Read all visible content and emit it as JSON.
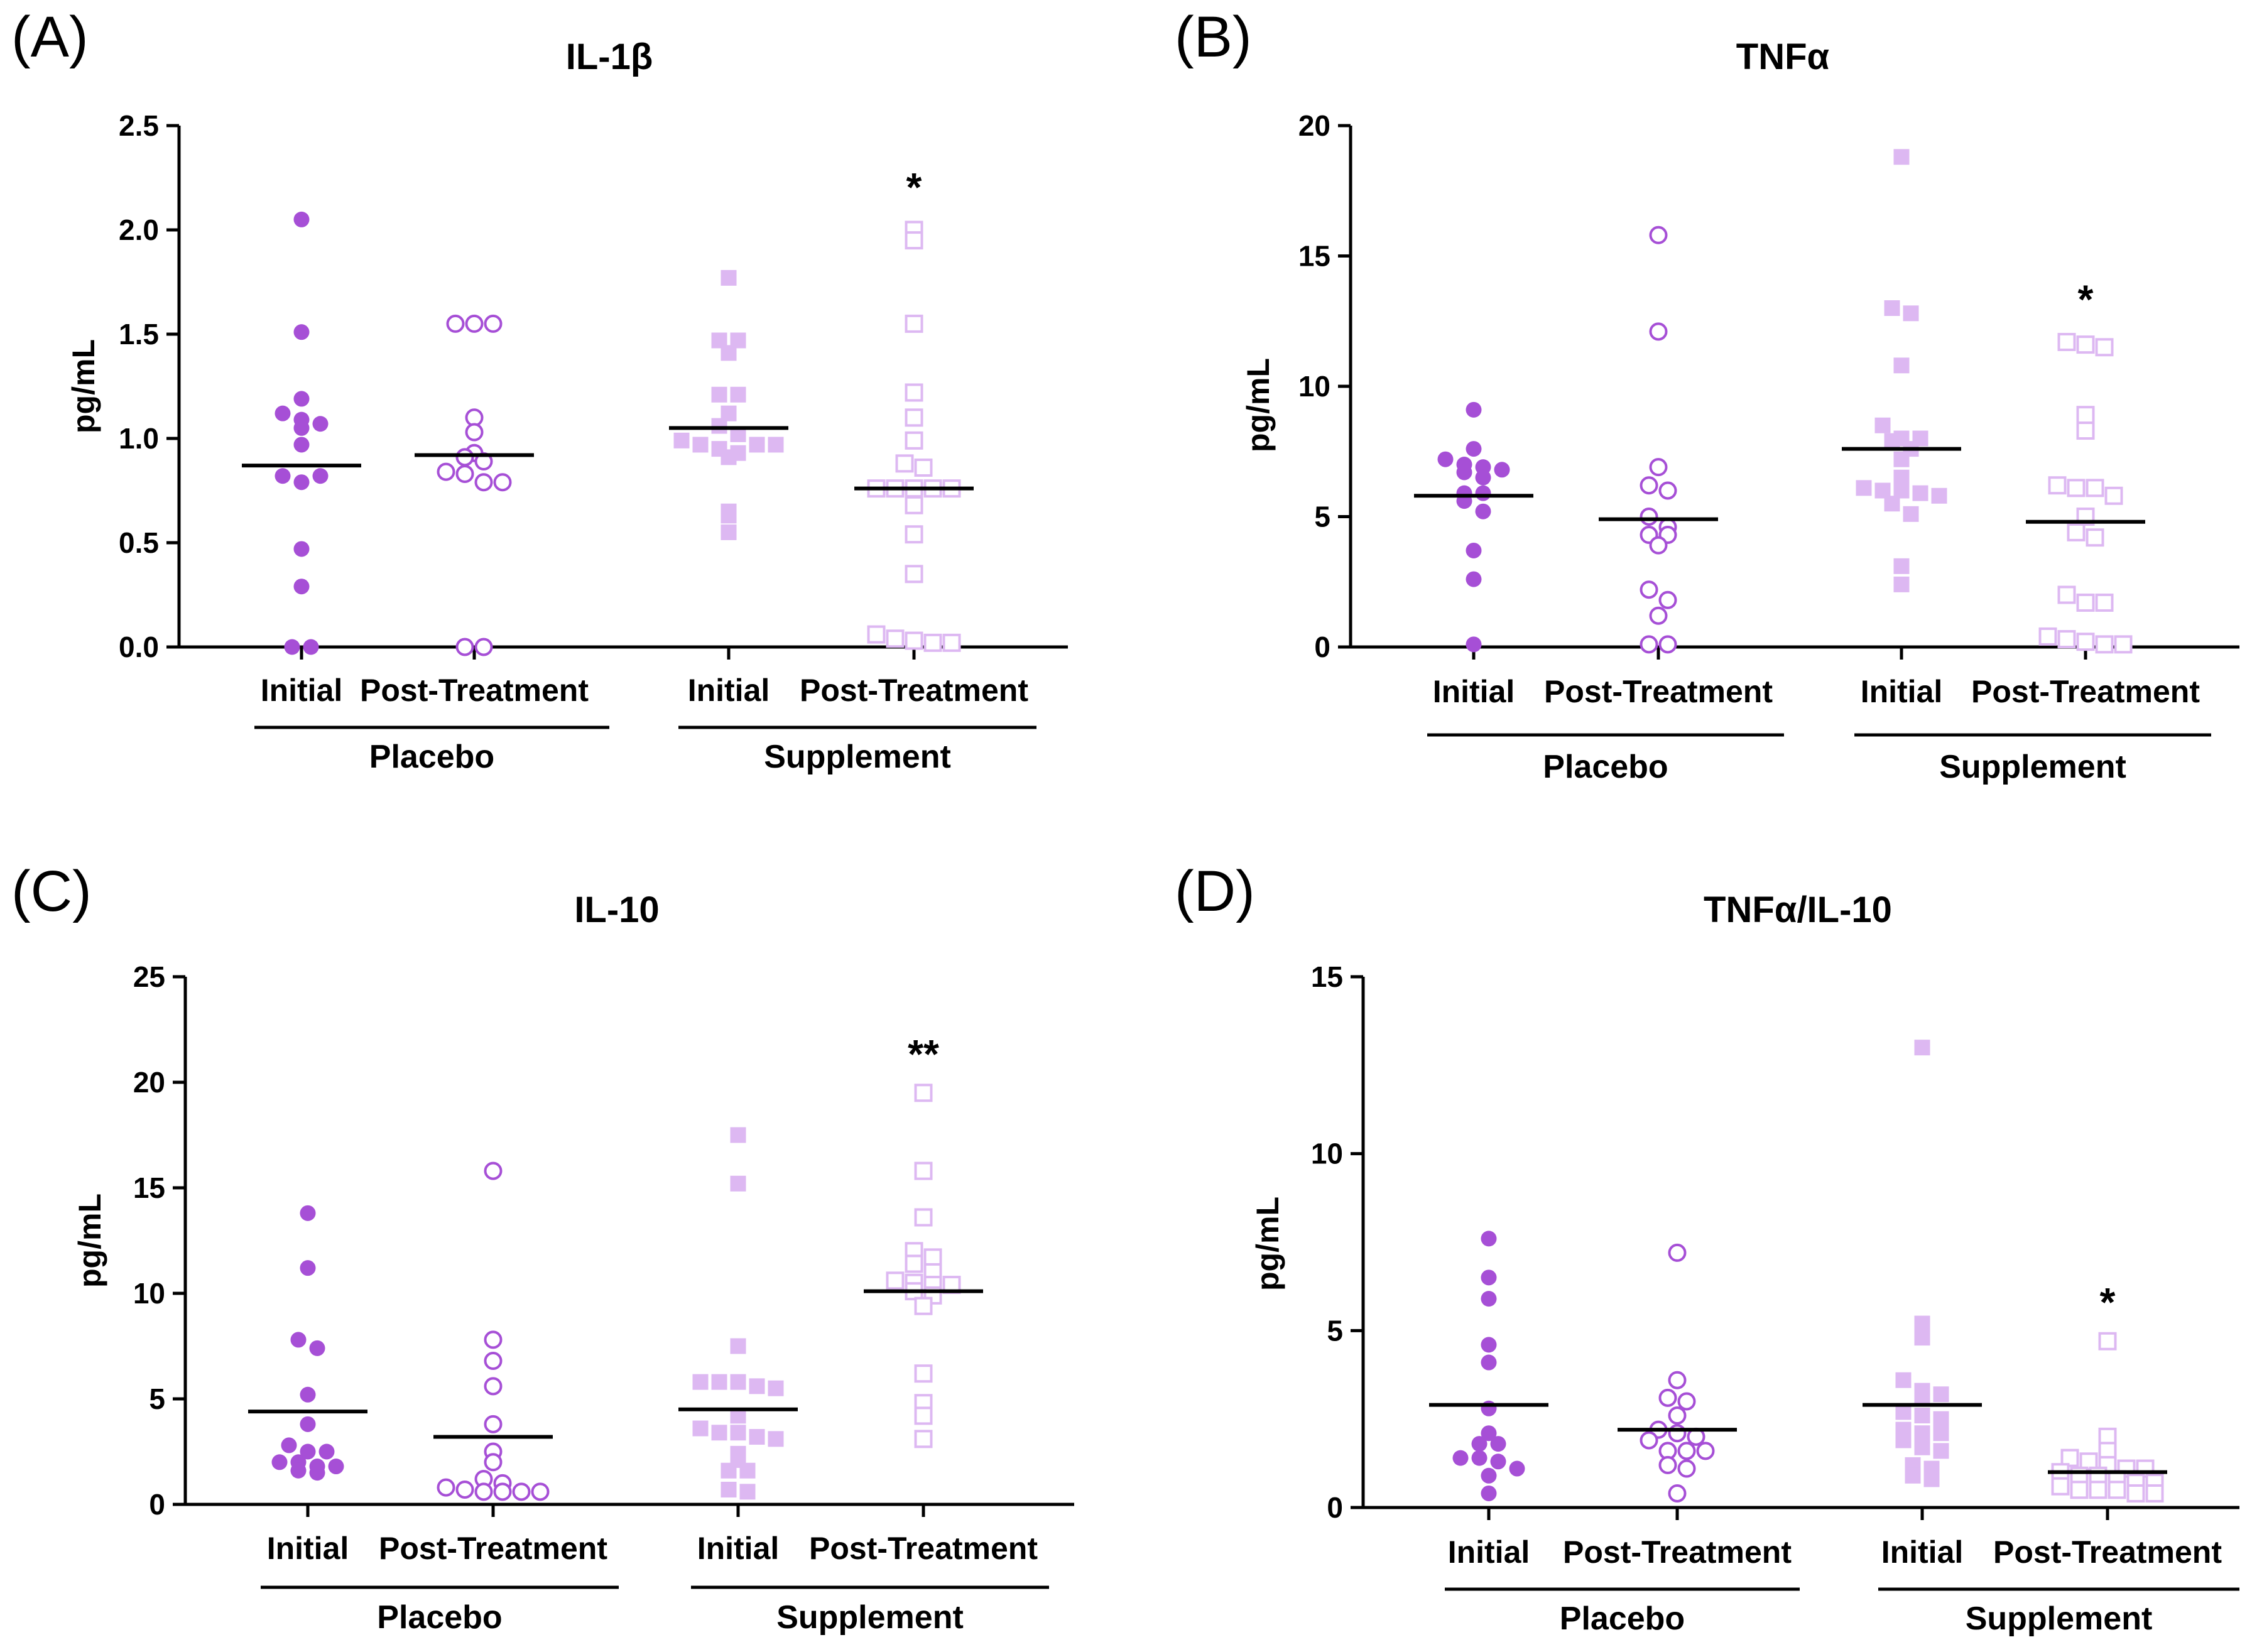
{
  "colors": {
    "placebo": "#a64fd6",
    "supplement": "#ddb8f2",
    "axis": "#000000"
  },
  "chart_data": [
    {
      "type": "scatter",
      "panel": "(A)",
      "title": "IL-1β",
      "ylabel": "pg/mL",
      "ylim": [
        0,
        2.5
      ],
      "yticks": [
        "0.0",
        "0.5",
        "1.0",
        "1.5",
        "2.0",
        "2.5"
      ],
      "ytick_values": [
        0,
        0.5,
        1.0,
        1.5,
        2.0,
        2.5
      ],
      "categories": [
        "Initial",
        "Post-Treatment",
        "Initial",
        "Post-Treatment"
      ],
      "groups": [
        "Placebo",
        "Supplement"
      ],
      "series": [
        {
          "group": "Placebo",
          "condition": "Initial",
          "marker": "circle-filled",
          "values": [
            2.05,
            1.51,
            1.19,
            1.12,
            1.09,
            1.07,
            1.05,
            0.97,
            0.82,
            0.79,
            0.82,
            0.47,
            0.29,
            0,
            0
          ],
          "median": 0.87
        },
        {
          "group": "Placebo",
          "condition": "Post-Treatment",
          "marker": "circle-open",
          "values": [
            1.55,
            1.55,
            1.55,
            1.1,
            1.03,
            0.93,
            0.91,
            0.89,
            0.84,
            0.83,
            0.79,
            0.79,
            0,
            0
          ],
          "median": 0.92
        },
        {
          "group": "Supplement",
          "condition": "Initial",
          "marker": "square-filled",
          "values": [
            1.77,
            1.47,
            1.47,
            1.41,
            1.21,
            1.21,
            1.12,
            1.06,
            1.02,
            0.99,
            0.97,
            0.95,
            0.93,
            0.91,
            0.97,
            0.97,
            0.65,
            0.63,
            0.55
          ],
          "median": 1.05
        },
        {
          "group": "Supplement",
          "condition": "Post-Treatment",
          "marker": "square-open",
          "values": [
            2.0,
            1.95,
            1.55,
            1.22,
            1.1,
            0.99,
            0.88,
            0.86,
            0.76,
            0.76,
            0.76,
            0.76,
            0.76,
            0.68,
            0.54,
            0.35,
            0.06,
            0.04,
            0.03,
            0.02,
            0.02
          ],
          "median": 0.76,
          "significance": "*"
        }
      ]
    },
    {
      "type": "scatter",
      "panel": "(B)",
      "title": "TNFα",
      "ylabel": "pg/mL",
      "ylim": [
        0,
        20
      ],
      "yticks": [
        "0",
        "5",
        "10",
        "15",
        "20"
      ],
      "ytick_values": [
        0,
        5,
        10,
        15,
        20
      ],
      "categories": [
        "Initial",
        "Post-Treatment",
        "Initial",
        "Post-Treatment"
      ],
      "groups": [
        "Placebo",
        "Supplement"
      ],
      "series": [
        {
          "group": "Placebo",
          "condition": "Initial",
          "marker": "circle-filled",
          "values": [
            9.1,
            7.6,
            7.2,
            7.0,
            6.9,
            6.8,
            6.7,
            6.5,
            5.9,
            5.9,
            5.6,
            5.2,
            3.7,
            2.6,
            0.1
          ],
          "median": 5.8
        },
        {
          "group": "Placebo",
          "condition": "Post-Treatment",
          "marker": "circle-open",
          "values": [
            15.8,
            12.1,
            6.9,
            6.2,
            6.0,
            5.0,
            4.6,
            4.3,
            4.3,
            3.9,
            2.2,
            1.8,
            1.2,
            0.1,
            0.1
          ],
          "median": 4.9
        },
        {
          "group": "Supplement",
          "condition": "Initial",
          "marker": "square-filled",
          "values": [
            18.8,
            13.0,
            12.8,
            10.8,
            8.5,
            8.0,
            8.0,
            7.9,
            7.6,
            7.2,
            6.5,
            6.1,
            6.0,
            6.0,
            5.9,
            5.8,
            5.5,
            5.1,
            3.1,
            2.4
          ],
          "median": 7.6
        },
        {
          "group": "Supplement",
          "condition": "Post-Treatment",
          "marker": "square-open",
          "values": [
            11.7,
            11.6,
            11.5,
            8.9,
            8.3,
            6.2,
            6.1,
            6.1,
            5.8,
            5.0,
            4.4,
            4.2,
            2.0,
            1.7,
            1.7,
            0.4,
            0.3,
            0.2,
            0.1,
            0.1
          ],
          "median": 4.8,
          "significance": "*"
        }
      ]
    },
    {
      "type": "scatter",
      "panel": "(C)",
      "title": "IL-10",
      "ylabel": "pg/mL",
      "ylim": [
        0,
        25
      ],
      "yticks": [
        "0",
        "5",
        "10",
        "15",
        "20",
        "25"
      ],
      "ytick_values": [
        0,
        5,
        10,
        15,
        20,
        25
      ],
      "categories": [
        "Initial",
        "Post-Treatment",
        "Initial",
        "Post-Treatment"
      ],
      "groups": [
        "Placebo",
        "Supplement"
      ],
      "series": [
        {
          "group": "Placebo",
          "condition": "Initial",
          "marker": "circle-filled",
          "values": [
            13.8,
            11.2,
            7.8,
            7.4,
            5.2,
            3.8,
            2.8,
            2.5,
            2.5,
            2.0,
            2.0,
            1.8,
            1.8,
            1.6,
            1.5
          ],
          "median": 4.4
        },
        {
          "group": "Placebo",
          "condition": "Post-Treatment",
          "marker": "circle-open",
          "values": [
            15.8,
            7.8,
            6.8,
            5.6,
            3.8,
            2.5,
            2.0,
            1.2,
            1.0,
            0.8,
            0.7,
            0.6,
            0.6,
            0.6,
            0.6
          ],
          "median": 3.2
        },
        {
          "group": "Supplement",
          "condition": "Initial",
          "marker": "square-filled",
          "values": [
            17.5,
            15.2,
            7.5,
            5.8,
            5.8,
            5.8,
            5.6,
            5.5,
            4.2,
            3.6,
            3.4,
            3.4,
            3.2,
            3.1,
            2.4,
            2.1,
            1.6,
            1.6,
            0.7,
            0.6
          ],
          "median": 4.5
        },
        {
          "group": "Supplement",
          "condition": "Post-Treatment",
          "marker": "square-open",
          "values": [
            19.5,
            15.8,
            13.6,
            12.0,
            11.7,
            11.4,
            11.0,
            10.6,
            10.5,
            10.4,
            10.4,
            10.1,
            9.9,
            9.4,
            6.2,
            4.8,
            4.2,
            3.1
          ],
          "median": 10.1,
          "significance": "**"
        }
      ]
    },
    {
      "type": "scatter",
      "panel": "(D)",
      "title": "TNFα/IL-10",
      "ylabel": "pg/mL",
      "ylim": [
        0,
        15
      ],
      "yticks": [
        "0",
        "5",
        "10",
        "15"
      ],
      "ytick_values": [
        0,
        5,
        10,
        15
      ],
      "categories": [
        "Initial",
        "Post-Treatment",
        "Initial",
        "Post-Treatment"
      ],
      "groups": [
        "Placebo",
        "Supplement"
      ],
      "series": [
        {
          "group": "Placebo",
          "condition": "Initial",
          "marker": "circle-filled",
          "values": [
            7.6,
            6.5,
            5.9,
            4.6,
            4.1,
            2.8,
            2.1,
            1.8,
            1.8,
            1.4,
            1.4,
            1.3,
            1.1,
            0.9,
            0.4
          ],
          "median": 2.9
        },
        {
          "group": "Placebo",
          "condition": "Post-Treatment",
          "marker": "circle-open",
          "values": [
            7.2,
            3.6,
            3.1,
            3.0,
            2.6,
            2.2,
            2.1,
            2.0,
            1.9,
            1.6,
            1.6,
            1.6,
            1.2,
            1.1,
            0.4
          ],
          "median": 2.2
        },
        {
          "group": "Supplement",
          "condition": "Initial",
          "marker": "square-filled",
          "values": [
            13.0,
            5.2,
            4.8,
            3.6,
            3.3,
            3.2,
            3.1,
            2.7,
            2.6,
            2.5,
            2.2,
            2.1,
            2.1,
            1.9,
            1.7,
            1.6,
            1.2,
            1.1,
            0.9,
            0.8
          ],
          "median": 2.9
        },
        {
          "group": "Supplement",
          "condition": "Post-Treatment",
          "marker": "square-open",
          "values": [
            4.7,
            2.0,
            1.6,
            1.4,
            1.3,
            1.2,
            1.1,
            1.1,
            1.0,
            0.9,
            0.9,
            0.8,
            0.7,
            0.7,
            0.6,
            0.5,
            0.5,
            0.5,
            0.4,
            0.4
          ],
          "median": 1.0,
          "significance": "*"
        }
      ]
    }
  ]
}
